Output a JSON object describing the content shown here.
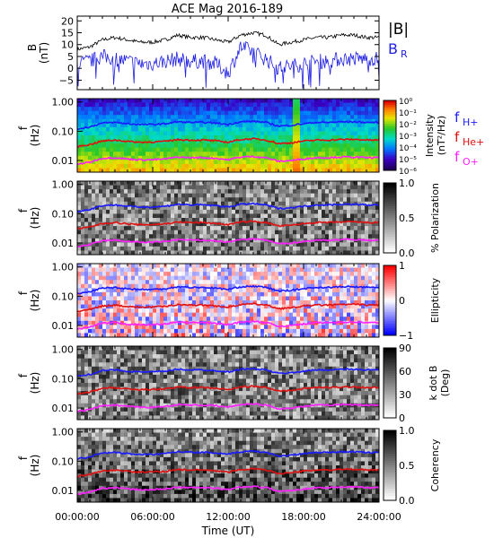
{
  "title": "ACE Mag 2016-189",
  "xlabel": "Time (UT)",
  "colors": {
    "B_total": "#000000",
    "B_R": "#2020e0",
    "f_H": "#1a1aff",
    "f_He": "#e01010",
    "f_O": "#ff20ff"
  },
  "chart_data": [
    {
      "type": "line",
      "panel": "magnetic-field",
      "ylabel": "B\n(nT)",
      "ylim": [
        -9,
        22
      ],
      "yticks": [
        -5,
        0,
        5,
        10,
        15,
        20
      ],
      "xticks": [
        "00:00:00",
        "06:00:00",
        "12:00:00",
        "18:00:00",
        "24:00:00"
      ],
      "x_hours": [
        0,
        1,
        2,
        3,
        4,
        5,
        6,
        7,
        8,
        9,
        10,
        11,
        12,
        13,
        14,
        15,
        16,
        17,
        18,
        19,
        20,
        21,
        22,
        23,
        24
      ],
      "series": [
        {
          "name": "|B|",
          "values": [
            8,
            9,
            12,
            13,
            12,
            11,
            11,
            12,
            14,
            13,
            13,
            12,
            11,
            14,
            15,
            14,
            10,
            11,
            12,
            13,
            13,
            14,
            14,
            13,
            13
          ]
        },
        {
          "name": "B_R",
          "values": [
            2,
            3,
            5,
            4,
            3,
            2,
            2,
            3,
            4,
            3,
            3,
            2,
            -2,
            9,
            7,
            4,
            0,
            1,
            2,
            3,
            3,
            4,
            4,
            4,
            4
          ]
        }
      ],
      "legend": [
        "|B|",
        "B_R"
      ],
      "legend_position": "right"
    },
    {
      "type": "heatmap",
      "panel": "intensity",
      "ylabel": "f\n(Hz)",
      "yscale": "log",
      "ylim": [
        0.004,
        1.3
      ],
      "yticks": [
        "1.00",
        "0.10",
        "0.01"
      ],
      "colorbar": {
        "label": "Intensity\n(nT²/Hz)",
        "scale": "log",
        "ticks": [
          "10⁰",
          "10⁻¹",
          "10⁻²",
          "10⁻³",
          "10⁻⁴",
          "10⁻⁵",
          "10⁻⁶"
        ],
        "colormap": "rainbow"
      },
      "legend": [
        "f_H+",
        "f_He+",
        "f_O+"
      ],
      "legend_position": "right"
    },
    {
      "type": "heatmap",
      "panel": "polarization",
      "ylabel": "f\n(Hz)",
      "yscale": "log",
      "yticks": [
        "1.00",
        "0.10",
        "0.01"
      ],
      "colorbar": {
        "label": "% Polarization",
        "ticks": [
          "1.0",
          "0.5",
          "0.0"
        ],
        "colormap": "grayscale"
      }
    },
    {
      "type": "heatmap",
      "panel": "ellipticity",
      "ylabel": "f\n(Hz)",
      "yscale": "log",
      "yticks": [
        "1.00",
        "0.10",
        "0.01"
      ],
      "colorbar": {
        "label": "Ellipticity",
        "ticks": [
          "1",
          "0",
          "−1"
        ],
        "colormap": "blue-white-red"
      }
    },
    {
      "type": "heatmap",
      "panel": "k-dot-b",
      "ylabel": "f\n(Hz)",
      "yscale": "log",
      "yticks": [
        "1.00",
        "0.10",
        "0.01"
      ],
      "colorbar": {
        "label": "k dot B\n(Deg)",
        "ticks": [
          "90",
          "60",
          "30",
          "0"
        ],
        "colormap": "grayscale"
      }
    },
    {
      "type": "heatmap",
      "panel": "coherency",
      "ylabel": "f\n(Hz)",
      "yscale": "log",
      "yticks": [
        "1.00",
        "0.10",
        "0.01"
      ],
      "colorbar": {
        "label": "Coherency",
        "ticks": [
          "1.0",
          "0.5",
          "0.0"
        ],
        "colormap": "grayscale"
      }
    }
  ],
  "gyrofrequency_lines": {
    "x_hours": [
      0,
      1,
      2,
      3,
      4,
      5,
      6,
      7,
      8,
      9,
      10,
      11,
      12,
      13,
      14,
      15,
      16,
      17,
      18,
      19,
      20,
      21,
      22,
      23,
      24
    ],
    "f_H": [
      0.12,
      0.14,
      0.19,
      0.2,
      0.18,
      0.17,
      0.17,
      0.18,
      0.21,
      0.2,
      0.2,
      0.19,
      0.17,
      0.21,
      0.22,
      0.2,
      0.15,
      0.16,
      0.18,
      0.2,
      0.2,
      0.21,
      0.21,
      0.2,
      0.2
    ],
    "f_He": [
      0.03,
      0.035,
      0.046,
      0.05,
      0.045,
      0.042,
      0.043,
      0.045,
      0.052,
      0.05,
      0.05,
      0.047,
      0.042,
      0.052,
      0.055,
      0.05,
      0.038,
      0.04,
      0.046,
      0.05,
      0.05,
      0.052,
      0.053,
      0.05,
      0.05
    ]
  }
}
